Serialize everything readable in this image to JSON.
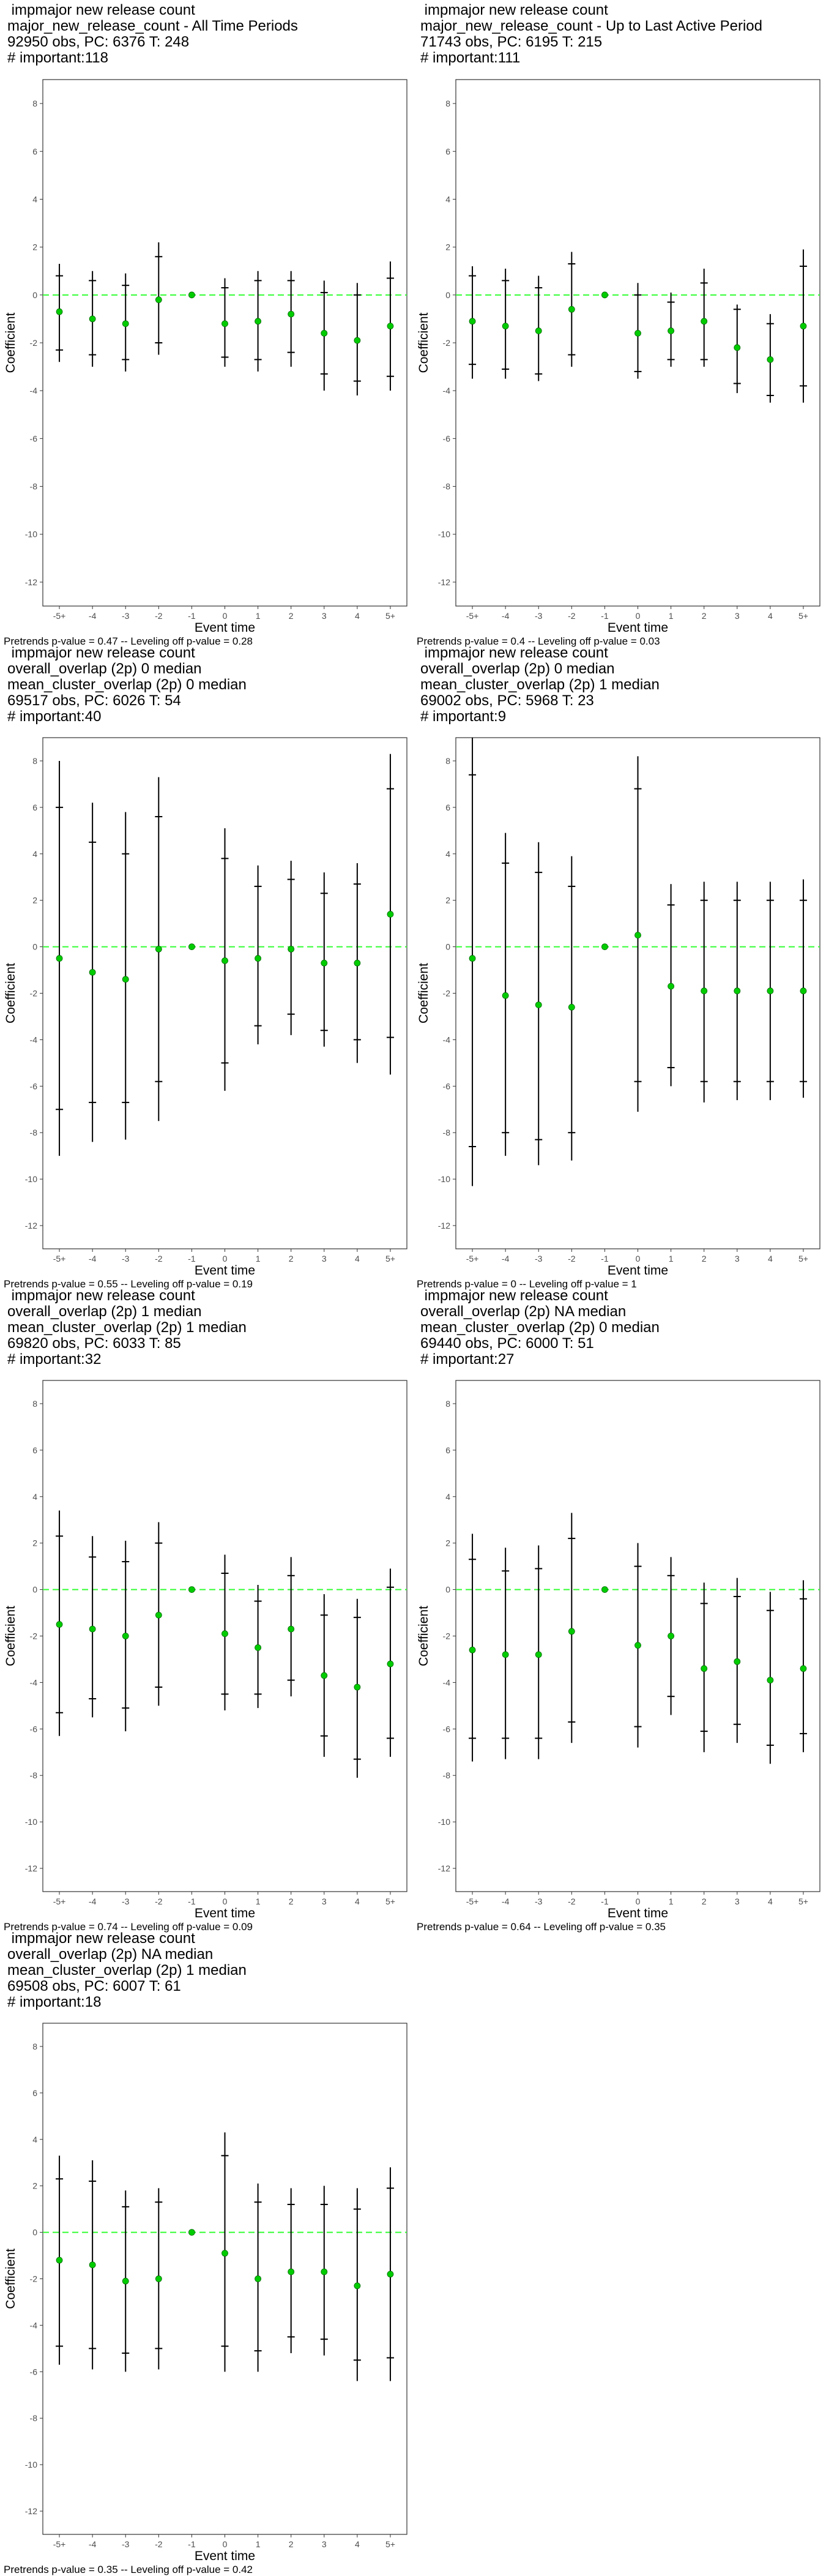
{
  "chart_data": [
    {
      "type": "errorbar",
      "title_lines": [
        " impmajor new release count",
        "major_new_release_count - All Time Periods",
        "92950 obs, PC: 6376 T: 248",
        "# important:118"
      ],
      "xlabel": "Event time",
      "ylabel": "Coefficient",
      "categories": [
        "-5+",
        "-4",
        "-3",
        "-2",
        "-1",
        "0",
        "1",
        "2",
        "3",
        "4",
        "5+"
      ],
      "ylim": [
        -13,
        9
      ],
      "yticks": [
        -12,
        -10,
        -8,
        -6,
        -4,
        -2,
        0,
        2,
        4,
        6,
        8
      ],
      "reference_line": 0,
      "point": [
        -0.7,
        -1.0,
        -1.2,
        -0.2,
        0,
        -1.2,
        -1.1,
        -0.8,
        -1.6,
        -1.9,
        -1.3
      ],
      "ci_outer": [
        [
          -2.8,
          1.3
        ],
        [
          -3.0,
          1.0
        ],
        [
          -3.2,
          0.9
        ],
        [
          -2.5,
          2.2
        ],
        [
          0,
          0
        ],
        [
          -3.0,
          0.7
        ],
        [
          -3.2,
          1.0
        ],
        [
          -3.0,
          1.0
        ],
        [
          -4.0,
          0.6
        ],
        [
          -4.2,
          0.5
        ],
        [
          -4.0,
          1.4
        ]
      ],
      "ci_inner": [
        [
          -2.3,
          0.8
        ],
        [
          -2.5,
          0.6
        ],
        [
          -2.7,
          0.4
        ],
        [
          -2.0,
          1.6
        ],
        [
          0,
          0
        ],
        [
          -2.6,
          0.3
        ],
        [
          -2.7,
          0.6
        ],
        [
          -2.4,
          0.6
        ],
        [
          -3.3,
          0.1
        ],
        [
          -3.6,
          0.0
        ],
        [
          -3.4,
          0.7
        ]
      ],
      "footnote": "Pretrends p-value = 0.47 -- Leveling off p-value = 0.28"
    },
    {
      "type": "errorbar",
      "title_lines": [
        " impmajor new release count",
        "major_new_release_count - Up to Last Active Period",
        "71743 obs, PC: 6195 T: 215",
        "# important:111"
      ],
      "xlabel": "Event time",
      "ylabel": "Coefficient",
      "categories": [
        "-5+",
        "-4",
        "-3",
        "-2",
        "-1",
        "0",
        "1",
        "2",
        "3",
        "4",
        "5+"
      ],
      "ylim": [
        -13,
        9
      ],
      "yticks": [
        -12,
        -10,
        -8,
        -6,
        -4,
        -2,
        0,
        2,
        4,
        6,
        8
      ],
      "reference_line": 0,
      "point": [
        -1.1,
        -1.3,
        -1.5,
        -0.6,
        0,
        -1.6,
        -1.5,
        -1.1,
        -2.2,
        -2.7,
        -1.3
      ],
      "ci_outer": [
        [
          -3.5,
          1.2
        ],
        [
          -3.5,
          1.1
        ],
        [
          -3.6,
          0.8
        ],
        [
          -3.0,
          1.8
        ],
        [
          0,
          0
        ],
        [
          -3.5,
          0.5
        ],
        [
          -3.0,
          0.1
        ],
        [
          -3.0,
          1.1
        ],
        [
          -4.1,
          -0.4
        ],
        [
          -4.5,
          -0.8
        ],
        [
          -4.5,
          1.9
        ]
      ],
      "ci_inner": [
        [
          -2.9,
          0.8
        ],
        [
          -3.1,
          0.6
        ],
        [
          -3.3,
          0.3
        ],
        [
          -2.5,
          1.3
        ],
        [
          0,
          0
        ],
        [
          -3.2,
          0.0
        ],
        [
          -2.7,
          -0.3
        ],
        [
          -2.7,
          0.5
        ],
        [
          -3.7,
          -0.6
        ],
        [
          -4.2,
          -1.2
        ],
        [
          -3.8,
          1.2
        ]
      ],
      "footnote": "Pretrends p-value = 0.4 -- Leveling off p-value = 0.03"
    },
    {
      "type": "errorbar",
      "title_lines": [
        " impmajor new release count",
        "overall_overlap (2p) 0 median",
        "mean_cluster_overlap (2p) 0 median",
        "69517 obs, PC: 6026 T: 54",
        "# important:40"
      ],
      "xlabel": "Event time",
      "ylabel": "Coefficient",
      "categories": [
        "-5+",
        "-4",
        "-3",
        "-2",
        "-1",
        "0",
        "1",
        "2",
        "3",
        "4",
        "5+"
      ],
      "ylim": [
        -13,
        9
      ],
      "yticks": [
        -12,
        -10,
        -8,
        -6,
        -4,
        -2,
        0,
        2,
        4,
        6,
        8
      ],
      "reference_line": 0,
      "point": [
        -0.5,
        -1.1,
        -1.4,
        -0.1,
        0,
        -0.6,
        -0.5,
        -0.1,
        -0.7,
        -0.7,
        1.4
      ],
      "ci_outer": [
        [
          -9.0,
          8.0
        ],
        [
          -8.4,
          6.2
        ],
        [
          -8.3,
          5.8
        ],
        [
          -7.5,
          7.3
        ],
        [
          0,
          0
        ],
        [
          -6.2,
          5.1
        ],
        [
          -4.2,
          3.5
        ],
        [
          -3.8,
          3.7
        ],
        [
          -4.3,
          3.2
        ],
        [
          -5.0,
          3.6
        ],
        [
          -5.5,
          8.3
        ]
      ],
      "ci_inner": [
        [
          -7.0,
          6.0
        ],
        [
          -6.7,
          4.5
        ],
        [
          -6.7,
          4.0
        ],
        [
          -5.8,
          5.6
        ],
        [
          0,
          0
        ],
        [
          -5.0,
          3.8
        ],
        [
          -3.4,
          2.6
        ],
        [
          -2.9,
          2.9
        ],
        [
          -3.6,
          2.3
        ],
        [
          -4.0,
          2.7
        ],
        [
          -3.9,
          6.8
        ]
      ],
      "footnote": "Pretrends p-value = 0.55 -- Leveling off p-value = 0.19"
    },
    {
      "type": "errorbar",
      "title_lines": [
        " impmajor new release count",
        "overall_overlap (2p) 0 median",
        "mean_cluster_overlap (2p) 1 median",
        "69002 obs, PC: 5968 T: 23",
        "# important:9"
      ],
      "xlabel": "Event time",
      "ylabel": "Coefficient",
      "categories": [
        "-5+",
        "-4",
        "-3",
        "-2",
        "-1",
        "0",
        "1",
        "2",
        "3",
        "4",
        "5+"
      ],
      "ylim": [
        -13,
        9
      ],
      "yticks": [
        -12,
        -10,
        -8,
        -6,
        -4,
        -2,
        0,
        2,
        4,
        6,
        8
      ],
      "reference_line": 0,
      "point": [
        -0.5,
        -2.1,
        -2.5,
        -2.6,
        0,
        0.5,
        -1.7,
        -1.9,
        -1.9,
        -1.9,
        -1.9
      ],
      "ci_outer": [
        [
          -10.3,
          9.0
        ],
        [
          -9.0,
          4.9
        ],
        [
          -9.4,
          4.5
        ],
        [
          -9.2,
          3.9
        ],
        [
          0,
          0
        ],
        [
          -7.1,
          8.2
        ],
        [
          -6.0,
          2.7
        ],
        [
          -6.7,
          2.8
        ],
        [
          -6.6,
          2.8
        ],
        [
          -6.6,
          2.8
        ],
        [
          -6.5,
          2.9
        ]
      ],
      "ci_inner": [
        [
          -8.6,
          7.4
        ],
        [
          -8.0,
          3.6
        ],
        [
          -8.3,
          3.2
        ],
        [
          -8.0,
          2.6
        ],
        [
          0,
          0
        ],
        [
          -5.8,
          6.8
        ],
        [
          -5.2,
          1.8
        ],
        [
          -5.8,
          2.0
        ],
        [
          -5.8,
          2.0
        ],
        [
          -5.8,
          2.0
        ],
        [
          -5.8,
          2.0
        ]
      ],
      "footnote": "Pretrends p-value = 0 -- Leveling off p-value = 1"
    },
    {
      "type": "errorbar",
      "title_lines": [
        " impmajor new release count",
        "overall_overlap (2p) 1 median",
        "mean_cluster_overlap (2p) 1 median",
        "69820 obs, PC: 6033 T: 85",
        "# important:32"
      ],
      "xlabel": "Event time",
      "ylabel": "Coefficient",
      "categories": [
        "-5+",
        "-4",
        "-3",
        "-2",
        "-1",
        "0",
        "1",
        "2",
        "3",
        "4",
        "5+"
      ],
      "ylim": [
        -13,
        9
      ],
      "yticks": [
        -12,
        -10,
        -8,
        -6,
        -4,
        -2,
        0,
        2,
        4,
        6,
        8
      ],
      "reference_line": 0,
      "point": [
        -1.5,
        -1.7,
        -2.0,
        -1.1,
        0,
        -1.9,
        -2.5,
        -1.7,
        -3.7,
        -4.2,
        -3.2
      ],
      "ci_outer": [
        [
          -6.3,
          3.4
        ],
        [
          -5.5,
          2.3
        ],
        [
          -6.1,
          2.1
        ],
        [
          -5.0,
          2.9
        ],
        [
          0,
          0
        ],
        [
          -5.2,
          1.5
        ],
        [
          -5.1,
          0.2
        ],
        [
          -4.6,
          1.4
        ],
        [
          -7.2,
          -0.2
        ],
        [
          -8.1,
          -0.4
        ],
        [
          -7.2,
          0.9
        ]
      ],
      "ci_inner": [
        [
          -5.3,
          2.3
        ],
        [
          -4.7,
          1.4
        ],
        [
          -5.1,
          1.2
        ],
        [
          -4.2,
          2.0
        ],
        [
          0,
          0
        ],
        [
          -4.5,
          0.7
        ],
        [
          -4.5,
          -0.5
        ],
        [
          -3.9,
          0.6
        ],
        [
          -6.3,
          -1.1
        ],
        [
          -7.3,
          -1.2
        ],
        [
          -6.4,
          0.1
        ]
      ],
      "footnote": "Pretrends p-value = 0.74 -- Leveling off p-value = 0.09"
    },
    {
      "type": "errorbar",
      "title_lines": [
        " impmajor new release count",
        "overall_overlap (2p) NA median",
        "mean_cluster_overlap (2p) 0 median",
        "69440 obs, PC: 6000 T: 51",
        "# important:27"
      ],
      "xlabel": "Event time",
      "ylabel": "Coefficient",
      "categories": [
        "-5+",
        "-4",
        "-3",
        "-2",
        "-1",
        "0",
        "1",
        "2",
        "3",
        "4",
        "5+"
      ],
      "ylim": [
        -13,
        9
      ],
      "yticks": [
        -12,
        -10,
        -8,
        -6,
        -4,
        -2,
        0,
        2,
        4,
        6,
        8
      ],
      "reference_line": 0,
      "point": [
        -2.6,
        -2.8,
        -2.8,
        -1.8,
        0,
        -2.4,
        -2.0,
        -3.4,
        -3.1,
        -3.9,
        -3.4
      ],
      "ci_outer": [
        [
          -7.4,
          2.4
        ],
        [
          -7.3,
          1.8
        ],
        [
          -7.3,
          1.9
        ],
        [
          -6.6,
          3.3
        ],
        [
          0,
          0
        ],
        [
          -6.8,
          2.0
        ],
        [
          -5.4,
          1.4
        ],
        [
          -7.0,
          0.3
        ],
        [
          -6.6,
          0.5
        ],
        [
          -7.5,
          -0.1
        ],
        [
          -7.0,
          0.4
        ]
      ],
      "ci_inner": [
        [
          -6.4,
          1.3
        ],
        [
          -6.4,
          0.8
        ],
        [
          -6.4,
          0.9
        ],
        [
          -5.7,
          2.2
        ],
        [
          0,
          0
        ],
        [
          -5.9,
          1.0
        ],
        [
          -4.6,
          0.6
        ],
        [
          -6.1,
          -0.6
        ],
        [
          -5.8,
          -0.3
        ],
        [
          -6.7,
          -0.9
        ],
        [
          -6.2,
          -0.4
        ]
      ],
      "footnote": "Pretrends p-value = 0.64 -- Leveling off p-value = 0.35"
    },
    {
      "type": "errorbar",
      "title_lines": [
        " impmajor new release count",
        "overall_overlap (2p) NA median",
        "mean_cluster_overlap (2p) 1 median",
        "69508 obs, PC: 6007 T: 61",
        "# important:18"
      ],
      "xlabel": "Event time",
      "ylabel": "Coefficient",
      "categories": [
        "-5+",
        "-4",
        "-3",
        "-2",
        "-1",
        "0",
        "1",
        "2",
        "3",
        "4",
        "5+"
      ],
      "ylim": [
        -13,
        9
      ],
      "yticks": [
        -12,
        -10,
        -8,
        -6,
        -4,
        -2,
        0,
        2,
        4,
        6,
        8
      ],
      "reference_line": 0,
      "point": [
        -1.2,
        -1.4,
        -2.1,
        -2.0,
        0,
        -0.9,
        -2.0,
        -1.7,
        -1.7,
        -2.3,
        -1.8
      ],
      "ci_outer": [
        [
          -5.7,
          3.3
        ],
        [
          -5.9,
          3.1
        ],
        [
          -6.0,
          1.8
        ],
        [
          -5.9,
          1.9
        ],
        [
          0,
          0
        ],
        [
          -6.0,
          4.3
        ],
        [
          -6.0,
          2.1
        ],
        [
          -5.2,
          1.9
        ],
        [
          -5.3,
          2.0
        ],
        [
          -6.4,
          1.9
        ],
        [
          -6.4,
          2.8
        ]
      ],
      "ci_inner": [
        [
          -4.9,
          2.3
        ],
        [
          -5.0,
          2.2
        ],
        [
          -5.2,
          1.1
        ],
        [
          -5.0,
          1.3
        ],
        [
          0,
          0
        ],
        [
          -4.9,
          3.3
        ],
        [
          -5.1,
          1.3
        ],
        [
          -4.5,
          1.2
        ],
        [
          -4.6,
          1.2
        ],
        [
          -5.5,
          1.0
        ],
        [
          -5.4,
          1.9
        ]
      ],
      "footnote": "Pretrends p-value = 0.35 -- Leveling off p-value = 0.42"
    }
  ]
}
